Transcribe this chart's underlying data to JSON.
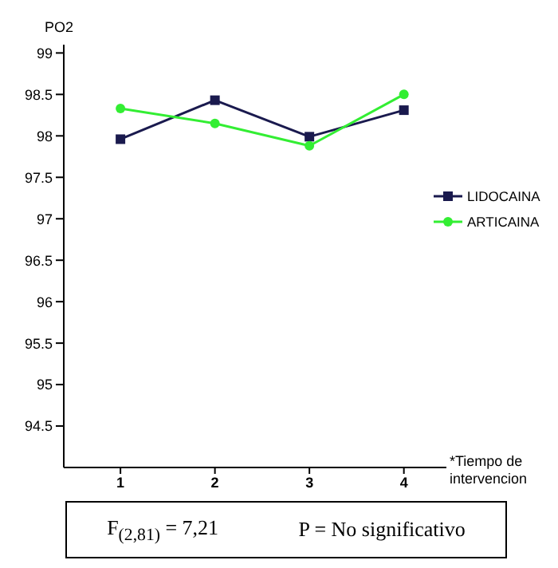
{
  "chart_data": {
    "type": "line",
    "ylabel": "PO2",
    "xlabel": "*Tiempo de intervencion",
    "x": [
      1,
      2,
      3,
      4
    ],
    "xlim": [
      0.4,
      4.45
    ],
    "xticks": [
      1,
      2,
      3,
      4
    ],
    "ylim": [
      94,
      99.1
    ],
    "yticks": [
      94.5,
      95,
      95.5,
      96,
      96.5,
      97,
      97.5,
      98,
      98.5,
      99
    ],
    "series": [
      {
        "name": "LIDOCAINA",
        "color": "#1a1a4e",
        "marker": "square",
        "values": [
          97.96,
          98.43,
          97.99,
          98.31
        ]
      },
      {
        "name": "ARTICAINA",
        "color": "#33ee33",
        "marker": "circle",
        "values": [
          98.33,
          98.15,
          97.88,
          98.5
        ]
      }
    ],
    "legend": "right",
    "grid": false,
    "annotations": [
      "F$_{(2,81)}$ = 7,21",
      "P = No significativo"
    ]
  }
}
